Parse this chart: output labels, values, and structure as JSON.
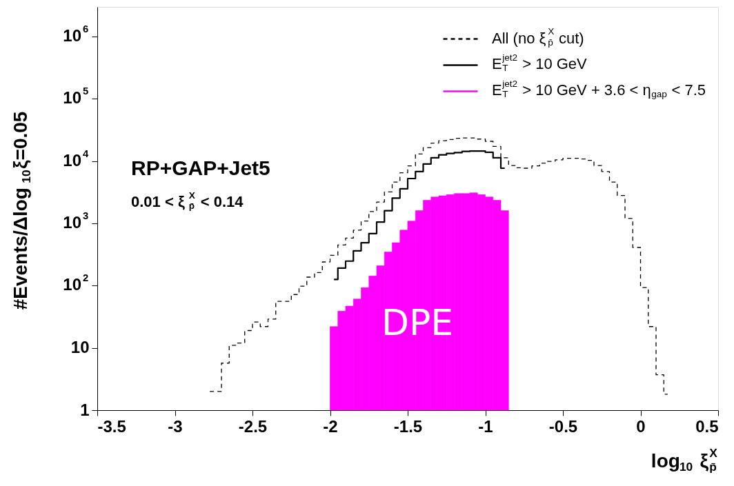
{
  "chart_data": {
    "type": "histogram",
    "xlabel": "log$_{10}$ ξ$^{X}$$_{p̄}$",
    "ylabel": "#Events/Δlog$_{10}$ξ=0.05",
    "bins": [
      -2.8,
      -2.75,
      -2.7,
      -2.65,
      -2.6,
      -2.55,
      -2.5,
      -2.45,
      -2.4,
      -2.35,
      -2.3,
      -2.25,
      -2.2,
      -2.15,
      -2.1,
      -2.05,
      -2.0,
      -1.95,
      -1.9,
      -1.85,
      -1.8,
      -1.75,
      -1.7,
      -1.65,
      -1.6,
      -1.55,
      -1.5,
      -1.45,
      -1.4,
      -1.35,
      -1.3,
      -1.25,
      -1.2,
      -1.15,
      -1.1,
      -1.05,
      -1.0,
      -0.95,
      -0.9,
      -0.85,
      -0.8,
      -0.75,
      -0.7,
      -0.65,
      -0.6,
      -0.55,
      -0.5,
      -0.45,
      -0.4,
      -0.35,
      -0.3,
      -0.25,
      -0.2,
      -0.15,
      -0.1,
      -0.05,
      0.0,
      0.05,
      0.1,
      0.15,
      0.2
    ],
    "series": [
      {
        "name": "All (no ξ$^{X}$$_{p̄}$ cut)",
        "type": "step",
        "line_style": "dashed",
        "color": "#000000",
        "x": [
          -2.775,
          -2.725,
          -2.675,
          -2.625,
          -2.575,
          -2.525,
          -2.475,
          -2.425,
          -2.375,
          -2.325,
          -2.275,
          -2.225,
          -2.175,
          -2.125,
          -2.075,
          -2.025,
          -1.975,
          -1.925,
          -1.875,
          -1.825,
          -1.775,
          -1.725,
          -1.675,
          -1.625,
          -1.575,
          -1.525,
          -1.475,
          -1.425,
          -1.375,
          -1.325,
          -1.275,
          -1.225,
          -1.175,
          -1.125,
          -1.075,
          -1.025,
          -0.975,
          -0.925,
          -0.875,
          -0.825,
          -0.775,
          -0.725,
          -0.675,
          -0.625,
          -0.575,
          -0.525,
          -0.475,
          -0.425,
          -0.375,
          -0.325,
          -0.275,
          -0.225,
          -0.175,
          -0.125,
          -0.075,
          -0.025,
          0.025,
          0.075,
          0.125,
          0.175
        ],
        "values": [
          2,
          2,
          5.7,
          11,
          12,
          19,
          26,
          22,
          29,
          56,
          56,
          72,
          98,
          137,
          162,
          240,
          307,
          450,
          580,
          780,
          1090,
          1550,
          2200,
          3200,
          4600,
          6500,
          8400,
          13000,
          16500,
          19500,
          21300,
          22200,
          23200,
          23600,
          23600,
          22600,
          20800,
          17200,
          11300,
          8500,
          7800,
          7700,
          8400,
          9300,
          9900,
          10500,
          11100,
          11100,
          10800,
          10300,
          8500,
          6800,
          4600,
          2800,
          1200,
          410,
          93,
          22,
          3.7,
          1.8
        ]
      },
      {
        "name": "E$^{jet2}$$_{T}$ > 10 GeV",
        "type": "step",
        "line_style": "solid",
        "color": "#000000",
        "x": [
          -1.975,
          -1.925,
          -1.875,
          -1.825,
          -1.775,
          -1.725,
          -1.675,
          -1.625,
          -1.575,
          -1.525,
          -1.475,
          -1.425,
          -1.375,
          -1.325,
          -1.275,
          -1.225,
          -1.175,
          -1.125,
          -1.075,
          -1.025,
          -0.975,
          -0.925,
          -0.875
        ],
        "values": [
          126,
          192,
          248,
          363,
          490,
          686,
          1050,
          1600,
          2550,
          3600,
          5250,
          6800,
          9000,
          11300,
          12600,
          13300,
          13700,
          14300,
          14500,
          14500,
          13900,
          11300,
          7700
        ]
      },
      {
        "name": "E$^{jet2}$$_{T}$ > 10 GeV + 3.6 < η$_{gap}$ < 7.5",
        "type": "histogram",
        "color": "#ff00ff",
        "values": [
          null,
          null,
          null,
          null,
          null,
          null,
          null,
          null,
          null,
          null,
          null,
          null,
          null,
          null,
          null,
          null,
          22,
          39,
          47,
          61,
          93,
          143,
          209,
          348,
          490,
          780,
          1090,
          1600,
          2350,
          2660,
          2780,
          2900,
          3020,
          3020,
          3100,
          2900,
          2660,
          2350,
          1600,
          null,
          null,
          null,
          null,
          null,
          null,
          null,
          null,
          null,
          null,
          null,
          null,
          null,
          null,
          null,
          null,
          null,
          null,
          null,
          null,
          null
        ]
      }
    ],
    "xlim": [
      -3.5,
      0.5
    ],
    "xticks": [
      -3.5,
      -3,
      -2.5,
      -2,
      -1.5,
      -1,
      -0.5,
      0,
      0.5
    ],
    "ylim": [
      1,
      3000000
    ],
    "yticks": [
      1,
      10,
      {
        "value": 100,
        "label": "10$^{2}$"
      },
      {
        "value": 1000,
        "label": "10$^{3}$"
      },
      {
        "value": 10000,
        "label": "10$^{4}$"
      },
      {
        "value": 100000,
        "label": "10$^{5}$"
      },
      {
        "value": 1000000,
        "label": "10$^{6}$"
      }
    ],
    "log": true,
    "legend": "top right",
    "annotations": [
      "RP+GAP+Jet5",
      "0.01 < ξ$^{X}$$_{p̄}$ < 0.14",
      {
        "text": "DPE",
        "x": -1.43,
        "y": 24
      }
    ]
  }
}
